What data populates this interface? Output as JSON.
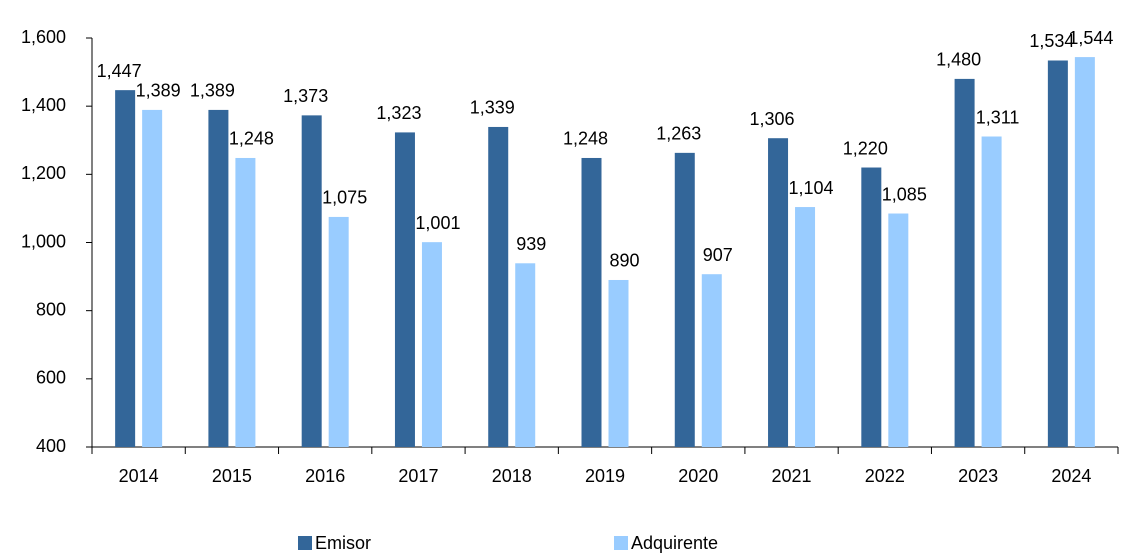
{
  "chart_data": {
    "type": "bar",
    "categories": [
      "2014",
      "2015",
      "2016",
      "2017",
      "2018",
      "2019",
      "2020",
      "2021",
      "2022",
      "2023",
      "2024"
    ],
    "series": [
      {
        "name": "Emisor",
        "color": "#336699",
        "values": [
          1447,
          1389,
          1373,
          1323,
          1339,
          1248,
          1263,
          1306,
          1220,
          1480,
          1534
        ],
        "value_labels": [
          "1,447",
          "1,389",
          "1,373",
          "1,323",
          "1,339",
          "1,248",
          "1,263",
          "1,306",
          "1,220",
          "1,480",
          "1,534"
        ]
      },
      {
        "name": "Adquirente",
        "color": "#99ccff",
        "values": [
          1389,
          1248,
          1075,
          1001,
          939,
          890,
          907,
          1104,
          1085,
          1311,
          1544
        ],
        "value_labels": [
          "1,389",
          "1,248",
          "1,075",
          "1,001",
          "939",
          "890",
          "907",
          "1,104",
          "1,085",
          "1,311",
          "1,544"
        ]
      }
    ],
    "ylim": [
      400,
      1600
    ],
    "yticks": [
      400,
      600,
      800,
      {
        "value": 1000,
        "label": "1,000"
      },
      {
        "value": 1200,
        "label": "1,200"
      },
      {
        "value": 1400,
        "label": "1,400"
      },
      {
        "value": 1600,
        "label": "1,600"
      }
    ],
    "legend": "bottom"
  }
}
